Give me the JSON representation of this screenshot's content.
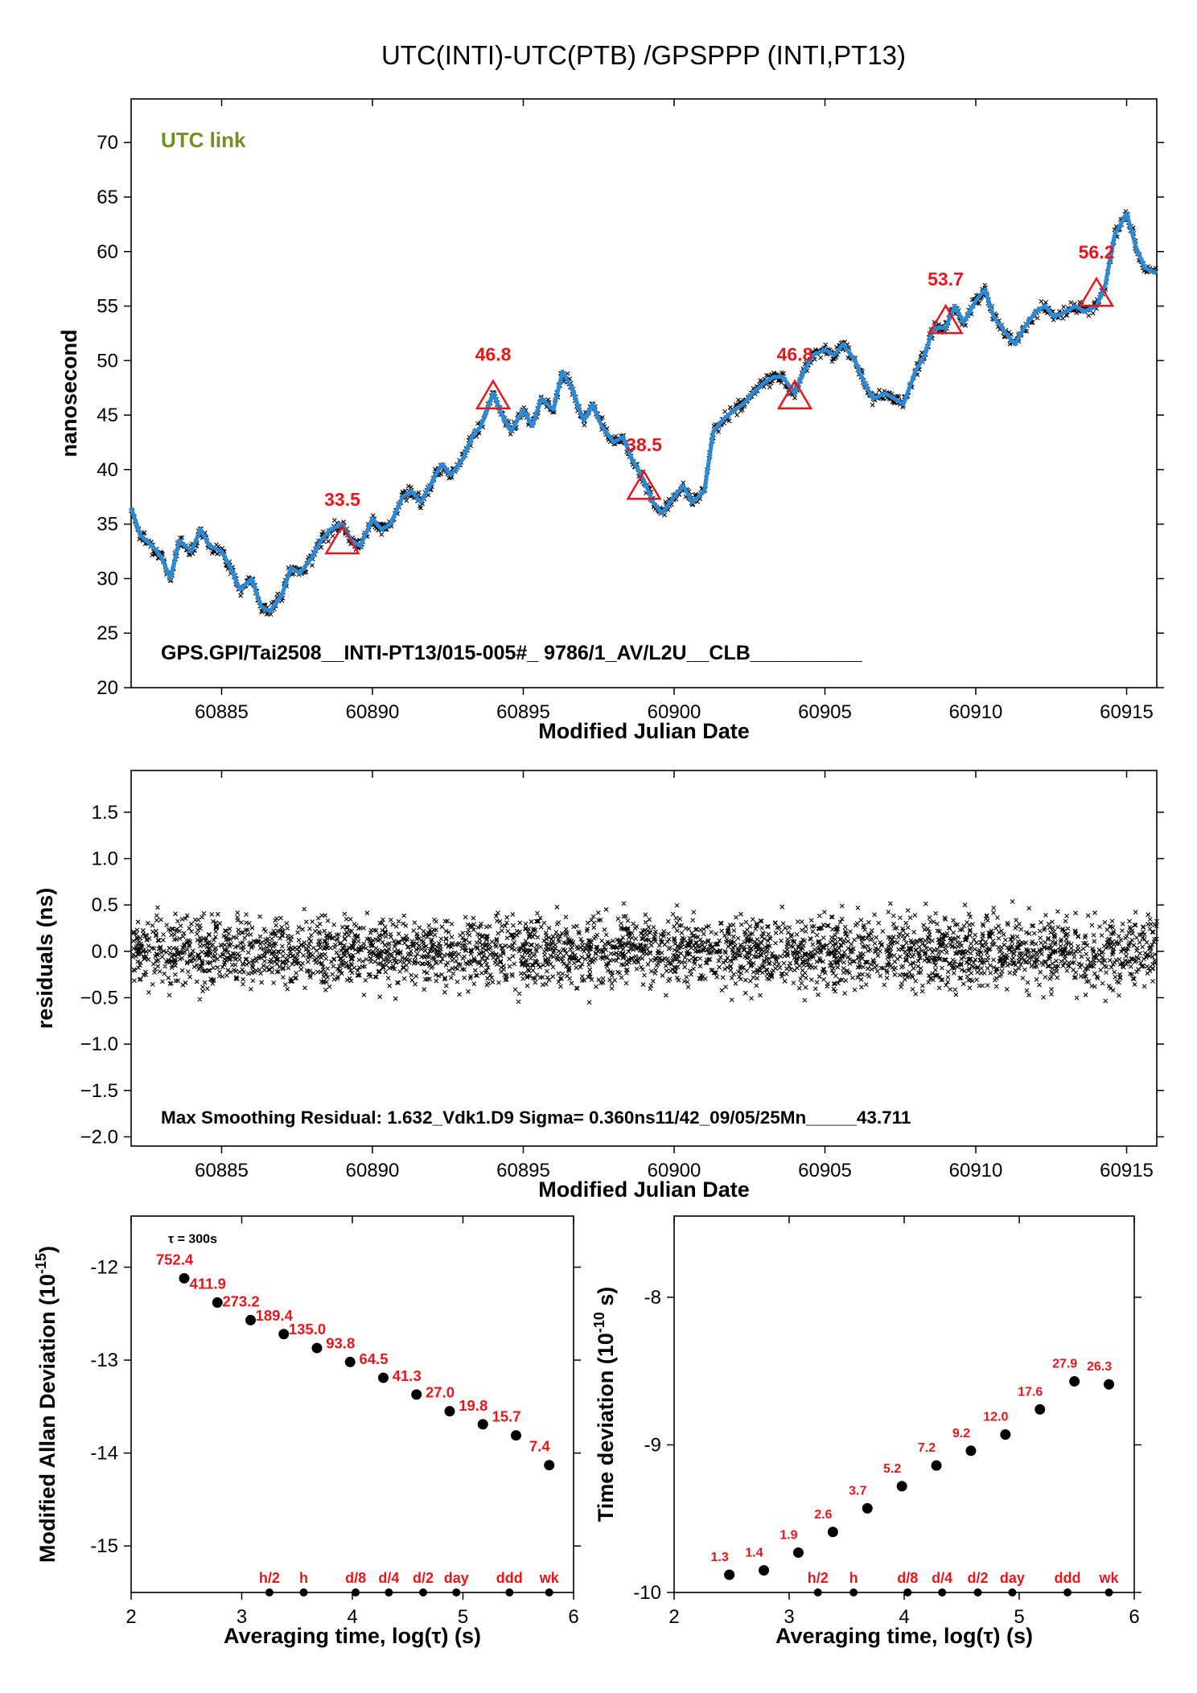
{
  "title": "UTC(INTI)-UTC(PTB)  /GPSPPP  (INTI,PT13)",
  "colors": {
    "link_series": "#2b8ad8",
    "raw_points": "#000000",
    "annotation": "#e8161a",
    "utc_link": "#6f8f1e"
  },
  "chart_data": [
    {
      "type": "line",
      "panel": "link",
      "inset_label": "UTC link",
      "footer": "GPS.GPI/Tai2508__INTI-PT13/015-005#_  9786/1_AV/L2U__CLB__________",
      "xlabel": "Modified Julian Date",
      "ylabel": "nanosecond",
      "xlim": [
        60882,
        60916
      ],
      "ylim": [
        20,
        74
      ],
      "xticks": [
        60885,
        60890,
        60895,
        60900,
        60905,
        60910,
        60915
      ],
      "yticks": [
        20,
        25,
        30,
        35,
        40,
        45,
        50,
        55,
        60,
        65,
        70
      ],
      "series": [
        {
          "x": [
            60882.0,
            60882.3,
            60882.7,
            60883.0,
            60883.3,
            60883.6,
            60884.0,
            60884.3,
            60884.6,
            60885.0,
            60885.3,
            60885.6,
            60886.0,
            60886.3,
            60886.6,
            60887.0,
            60887.3,
            60887.6,
            60888.0,
            60888.3,
            60888.6,
            60889.0,
            60889.3,
            60889.6,
            60890.0,
            60890.3,
            60890.6,
            60891.0,
            60891.3,
            60891.6,
            60892.0,
            60892.3,
            60892.6,
            60893.0,
            60893.3,
            60893.6,
            60894.0,
            60894.3,
            60894.6,
            60895.0,
            60895.3,
            60895.6,
            60896.0,
            60896.3,
            60896.6,
            60897.0,
            60897.3,
            60897.6,
            60898.0,
            60898.3,
            60898.6,
            60899.0,
            60899.3,
            60899.6,
            60900.0,
            60900.3,
            60900.6,
            60901.0,
            60901.3,
            60901.6,
            60902.0,
            60902.3,
            60902.6,
            60903.0,
            60903.3,
            60903.6,
            60904.0,
            60904.3,
            60904.6,
            60905.0,
            60905.3,
            60905.6,
            60906.0,
            60906.3,
            60906.6,
            60907.0,
            60907.3,
            60907.6,
            60908.0,
            60908.3,
            60908.6,
            60909.0,
            60909.3,
            60909.6,
            60910.0,
            60910.3,
            60910.6,
            60911.0,
            60911.3,
            60911.6,
            60912.0,
            60912.3,
            60912.6,
            60913.0,
            60913.3,
            60913.6,
            60914.0,
            60914.3,
            60914.6,
            60915.0,
            60915.3,
            60915.6,
            60916.0
          ],
          "y": [
            36.5,
            34.0,
            33.0,
            32.0,
            30.0,
            33.5,
            32.5,
            34.5,
            33.0,
            32.5,
            31.0,
            29.0,
            30.0,
            27.5,
            27.0,
            28.5,
            31.0,
            30.5,
            32.0,
            33.5,
            34.5,
            35.0,
            33.5,
            33.0,
            35.5,
            34.5,
            35.0,
            37.5,
            38.0,
            37.0,
            39.0,
            40.5,
            39.5,
            41.0,
            43.0,
            44.0,
            47.0,
            45.0,
            43.5,
            45.5,
            44.0,
            46.5,
            45.5,
            49.0,
            47.5,
            44.5,
            46.0,
            44.0,
            42.5,
            43.0,
            41.0,
            39.0,
            37.0,
            36.0,
            37.5,
            38.5,
            37.0,
            38.0,
            43.5,
            44.5,
            45.5,
            46.0,
            47.0,
            48.0,
            48.5,
            48.5,
            47.0,
            49.0,
            50.5,
            51.0,
            50.5,
            51.5,
            50.0,
            48.0,
            46.5,
            47.0,
            46.5,
            46.0,
            49.0,
            50.5,
            53.0,
            53.0,
            55.0,
            53.5,
            55.5,
            56.5,
            54.0,
            52.5,
            51.5,
            53.0,
            54.5,
            55.0,
            54.0,
            54.5,
            55.0,
            54.5,
            55.0,
            57.0,
            61.5,
            63.5,
            60.5,
            58.5,
            58.0
          ]
        }
      ],
      "annotations": [
        {
          "x": 60889.0,
          "y": 33.5,
          "label": "33.5"
        },
        {
          "x": 60894.0,
          "y": 46.8,
          "label": "46.8"
        },
        {
          "x": 60899.0,
          "y": 38.5,
          "label": "38.5"
        },
        {
          "x": 60904.0,
          "y": 46.8,
          "label": "46.8"
        },
        {
          "x": 60909.0,
          "y": 53.7,
          "label": "53.7"
        },
        {
          "x": 60914.0,
          "y": 56.2,
          "label": "56.2"
        }
      ],
      "grid": false
    },
    {
      "type": "scatter",
      "panel": "residuals",
      "footer": "Max Smoothing Residual: 1.632_Vdk1.D9  Sigma= 0.360ns11/42_09/05/25Mn_____43.711",
      "xlabel": "Modified Julian Date",
      "ylabel": "residuals (ns)",
      "xlim": [
        60882,
        60916
      ],
      "ylim": [
        -2.1,
        1.95
      ],
      "xticks": [
        60885,
        60890,
        60895,
        60900,
        60905,
        60910,
        60915
      ],
      "yticks": [
        -2.0,
        -1.5,
        -1.0,
        -0.5,
        0.0,
        0.5,
        1.0,
        1.5
      ],
      "ytick_labels": [
        "−2.0",
        "−1.5",
        "−1.0",
        "−0.5",
        "0.0",
        "0.5",
        "1.0",
        "1.5"
      ],
      "sigma": 0.36,
      "max_residual": 1.632,
      "grid": false
    },
    {
      "type": "scatter",
      "panel": "mdev",
      "xlabel": "Averaging time, log(τ) (s)",
      "ylabel_main": "Modified Allan Deviation (10",
      "ylabel_exp": "-15",
      "ylabel_tail": ")",
      "tau_note": "τ = 300s",
      "xlim": [
        2,
        6
      ],
      "ylim": [
        -15.5,
        -11.45
      ],
      "xticks": [
        2,
        3,
        4,
        5,
        6
      ],
      "yticks": [
        -15,
        -14,
        -13,
        -12
      ],
      "x": [
        2.48,
        2.78,
        3.08,
        3.38,
        3.68,
        3.98,
        4.28,
        4.58,
        4.88,
        5.18,
        5.48,
        5.78
      ],
      "y": [
        -12.12,
        -12.38,
        -12.57,
        -12.72,
        -12.87,
        -13.02,
        -13.19,
        -13.37,
        -13.55,
        -13.69,
        -13.81,
        -14.13
      ],
      "labels": [
        "752.4",
        "411.9",
        "273.2",
        "189.4",
        "135.0",
        "93.8",
        "64.5",
        "41.3",
        "27.0",
        "19.8",
        "15.7",
        "7.4"
      ],
      "markers": [
        {
          "x": 3.25,
          "label": "h/2"
        },
        {
          "x": 3.56,
          "label": "h"
        },
        {
          "x": 4.03,
          "label": "d/8"
        },
        {
          "x": 4.33,
          "label": "d/4"
        },
        {
          "x": 4.64,
          "label": "d/2"
        },
        {
          "x": 4.94,
          "label": "day"
        },
        {
          "x": 5.42,
          "label": "ddd"
        },
        {
          "x": 5.78,
          "label": "wk"
        }
      ]
    },
    {
      "type": "scatter",
      "panel": "tdev",
      "xlabel": "Averaging time, log(τ) (s)",
      "ylabel_main": "Time deviation (10",
      "ylabel_exp": "-10",
      "ylabel_tail": " s)",
      "xlim": [
        2,
        6
      ],
      "ylim": [
        -10.0,
        -7.45
      ],
      "xticks": [
        2,
        3,
        4,
        5,
        6
      ],
      "yticks": [
        -10,
        -9,
        -8
      ],
      "x": [
        2.48,
        2.78,
        3.08,
        3.38,
        3.68,
        3.98,
        4.28,
        4.58,
        4.88,
        5.18,
        5.48,
        5.78
      ],
      "y": [
        -9.88,
        -9.85,
        -9.73,
        -9.59,
        -9.43,
        -9.28,
        -9.14,
        -9.04,
        -8.93,
        -8.76,
        -8.57,
        -8.59
      ],
      "labels": [
        "1.3",
        "1.4",
        "1.9",
        "2.6",
        "3.7",
        "5.2",
        "7.2",
        "9.2",
        "12.0",
        "17.6",
        "27.9",
        "26.3"
      ],
      "markers": [
        {
          "x": 3.25,
          "label": "h/2"
        },
        {
          "x": 3.56,
          "label": "h"
        },
        {
          "x": 4.03,
          "label": "d/8"
        },
        {
          "x": 4.33,
          "label": "d/4"
        },
        {
          "x": 4.64,
          "label": "d/2"
        },
        {
          "x": 4.94,
          "label": "day"
        },
        {
          "x": 5.42,
          "label": "ddd"
        },
        {
          "x": 5.78,
          "label": "wk"
        }
      ]
    }
  ]
}
